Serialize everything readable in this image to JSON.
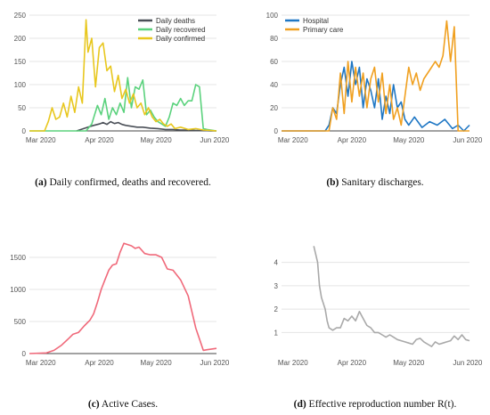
{
  "charts": [
    {
      "id": "a",
      "type": "line",
      "x_ticks": [
        "Mar 2020",
        "Apr 2020",
        "May 2020",
        "Jun 2020"
      ],
      "xlim": [
        "2020-02-24",
        "2020-06-02"
      ],
      "ylim": [
        0,
        250
      ],
      "y_ticks": [
        0,
        50,
        100,
        150,
        200,
        250
      ],
      "legend": "top-right",
      "caption_label": "(a)",
      "caption_text": "Daily confirmed, deaths and recovered.",
      "series": [
        {
          "name": "Daily deaths",
          "color": "#4a4f57",
          "x": [
            "2020-03-20",
            "2020-03-23",
            "2020-03-26",
            "2020-03-29",
            "2020-04-01",
            "2020-04-03",
            "2020-04-05",
            "2020-04-07",
            "2020-04-09",
            "2020-04-11",
            "2020-04-13",
            "2020-04-15",
            "2020-04-18",
            "2020-04-21",
            "2020-04-24",
            "2020-04-28",
            "2020-05-02",
            "2020-05-06",
            "2020-05-10",
            "2020-05-14",
            "2020-05-18",
            "2020-05-22",
            "2020-05-26",
            "2020-05-30",
            "2020-06-02"
          ],
          "y": [
            0,
            4,
            8,
            12,
            15,
            18,
            14,
            20,
            16,
            18,
            14,
            12,
            10,
            8,
            8,
            6,
            5,
            3,
            3,
            2,
            2,
            1,
            1,
            0,
            0
          ]
        },
        {
          "name": "Daily recovered",
          "color": "#5bd27d",
          "x": [
            "2020-02-24",
            "2020-03-25",
            "2020-03-28",
            "2020-03-31",
            "2020-04-02",
            "2020-04-04",
            "2020-04-06",
            "2020-04-08",
            "2020-04-10",
            "2020-04-12",
            "2020-04-14",
            "2020-04-16",
            "2020-04-18",
            "2020-04-20",
            "2020-04-22",
            "2020-04-24",
            "2020-04-26",
            "2020-04-28",
            "2020-04-30",
            "2020-05-02",
            "2020-05-04",
            "2020-05-06",
            "2020-05-08",
            "2020-05-10",
            "2020-05-12",
            "2020-05-14",
            "2020-05-16",
            "2020-05-18",
            "2020-05-20",
            "2020-05-22",
            "2020-05-24",
            "2020-05-26",
            "2020-05-28",
            "2020-05-30",
            "2020-06-02"
          ],
          "y": [
            0,
            0,
            15,
            55,
            35,
            70,
            25,
            50,
            35,
            60,
            40,
            115,
            50,
            95,
            90,
            110,
            35,
            45,
            30,
            20,
            15,
            10,
            30,
            60,
            55,
            70,
            55,
            65,
            65,
            100,
            95,
            5,
            3,
            2,
            0
          ]
        },
        {
          "name": "Daily confirmed",
          "color": "#e8c71e",
          "x": [
            "2020-02-24",
            "2020-03-03",
            "2020-03-05",
            "2020-03-07",
            "2020-03-09",
            "2020-03-11",
            "2020-03-13",
            "2020-03-15",
            "2020-03-17",
            "2020-03-19",
            "2020-03-21",
            "2020-03-23",
            "2020-03-25",
            "2020-03-26",
            "2020-03-28",
            "2020-03-30",
            "2020-04-01",
            "2020-04-03",
            "2020-04-05",
            "2020-04-07",
            "2020-04-09",
            "2020-04-11",
            "2020-04-13",
            "2020-04-15",
            "2020-04-17",
            "2020-04-19",
            "2020-04-21",
            "2020-04-23",
            "2020-04-25",
            "2020-04-27",
            "2020-04-29",
            "2020-05-01",
            "2020-05-03",
            "2020-05-05",
            "2020-05-07",
            "2020-05-09",
            "2020-05-11",
            "2020-05-14",
            "2020-05-18",
            "2020-05-22",
            "2020-05-26",
            "2020-05-30",
            "2020-06-02"
          ],
          "y": [
            0,
            0,
            20,
            50,
            25,
            30,
            60,
            30,
            75,
            40,
            95,
            60,
            240,
            170,
            200,
            95,
            180,
            190,
            130,
            140,
            85,
            120,
            70,
            90,
            60,
            80,
            50,
            60,
            35,
            50,
            30,
            20,
            25,
            15,
            10,
            15,
            5,
            8,
            3,
            5,
            2,
            1,
            0
          ]
        }
      ]
    },
    {
      "id": "b",
      "type": "line",
      "x_ticks": [
        "Mar 2020",
        "Apr 2020",
        "May 2020",
        "Jun 2020"
      ],
      "xlim": [
        "2020-02-24",
        "2020-06-02"
      ],
      "ylim": [
        0,
        100
      ],
      "y_ticks": [
        0,
        20,
        40,
        60,
        80,
        100
      ],
      "legend": "top-left",
      "caption_label": "(b)",
      "caption_text": "Sanitary discharges.",
      "series": [
        {
          "name": "Hospital",
          "color": "#1f77c4",
          "x": [
            "2020-02-24",
            "2020-03-18",
            "2020-03-20",
            "2020-03-22",
            "2020-03-24",
            "2020-03-26",
            "2020-03-28",
            "2020-03-30",
            "2020-04-01",
            "2020-04-03",
            "2020-04-05",
            "2020-04-07",
            "2020-04-09",
            "2020-04-11",
            "2020-04-13",
            "2020-04-15",
            "2020-04-17",
            "2020-04-19",
            "2020-04-21",
            "2020-04-23",
            "2020-04-25",
            "2020-04-27",
            "2020-04-29",
            "2020-05-01",
            "2020-05-04",
            "2020-05-08",
            "2020-05-12",
            "2020-05-16",
            "2020-05-20",
            "2020-05-24",
            "2020-05-27",
            "2020-05-30",
            "2020-06-02"
          ],
          "y": [
            0,
            0,
            5,
            20,
            15,
            40,
            55,
            30,
            60,
            40,
            55,
            20,
            45,
            35,
            20,
            45,
            10,
            30,
            15,
            40,
            20,
            25,
            10,
            5,
            12,
            3,
            8,
            5,
            10,
            2,
            5,
            0,
            5
          ]
        },
        {
          "name": "Primary care",
          "color": "#f0a020",
          "x": [
            "2020-02-24",
            "2020-03-20",
            "2020-03-22",
            "2020-03-24",
            "2020-03-26",
            "2020-03-28",
            "2020-03-30",
            "2020-04-01",
            "2020-04-03",
            "2020-04-05",
            "2020-04-07",
            "2020-04-09",
            "2020-04-11",
            "2020-04-13",
            "2020-04-15",
            "2020-04-17",
            "2020-04-19",
            "2020-04-21",
            "2020-04-23",
            "2020-04-25",
            "2020-04-27",
            "2020-04-29",
            "2020-05-01",
            "2020-05-03",
            "2020-05-05",
            "2020-05-07",
            "2020-05-09",
            "2020-05-11",
            "2020-05-13",
            "2020-05-15",
            "2020-05-17",
            "2020-05-19",
            "2020-05-21",
            "2020-05-23",
            "2020-05-25",
            "2020-05-27",
            "2020-06-02"
          ],
          "y": [
            0,
            0,
            20,
            10,
            50,
            15,
            60,
            25,
            55,
            30,
            50,
            20,
            45,
            55,
            25,
            50,
            15,
            40,
            10,
            20,
            5,
            30,
            55,
            40,
            50,
            35,
            45,
            50,
            55,
            60,
            55,
            65,
            95,
            60,
            90,
            0,
            0
          ]
        }
      ]
    },
    {
      "id": "c",
      "type": "line",
      "x_ticks": [
        "Mar 2020",
        "Apr 2020",
        "May 2020",
        "Jun 2020"
      ],
      "xlim": [
        "2020-02-24",
        "2020-06-02"
      ],
      "ylim": [
        0,
        1750
      ],
      "y_ticks": [
        0,
        500,
        1000,
        1500
      ],
      "legend": "none",
      "caption_label": "(c)",
      "caption_text": "Active Cases.",
      "series": [
        {
          "color": "#f0697a",
          "x": [
            "2020-02-24",
            "2020-03-04",
            "2020-03-08",
            "2020-03-12",
            "2020-03-16",
            "2020-03-18",
            "2020-03-21",
            "2020-03-24",
            "2020-03-27",
            "2020-03-29",
            "2020-03-31",
            "2020-04-02",
            "2020-04-04",
            "2020-04-06",
            "2020-04-08",
            "2020-04-10",
            "2020-04-12",
            "2020-04-14",
            "2020-04-16",
            "2020-04-18",
            "2020-04-20",
            "2020-04-22",
            "2020-04-25",
            "2020-04-28",
            "2020-05-01",
            "2020-05-04",
            "2020-05-07",
            "2020-05-10",
            "2020-05-14",
            "2020-05-18",
            "2020-05-22",
            "2020-05-26",
            "2020-05-28",
            "2020-06-02"
          ],
          "y": [
            0,
            10,
            50,
            130,
            240,
            300,
            330,
            430,
            520,
            620,
            800,
            1000,
            1150,
            1300,
            1380,
            1400,
            1580,
            1720,
            1700,
            1680,
            1640,
            1660,
            1560,
            1540,
            1540,
            1500,
            1320,
            1300,
            1150,
            900,
            400,
            50,
            60,
            80
          ]
        }
      ]
    },
    {
      "id": "d",
      "type": "line",
      "x_ticks": [
        "Mar 2020",
        "Apr 2020",
        "May 2020",
        "Jun 2020"
      ],
      "xlim": [
        "2020-02-24",
        "2020-06-02"
      ],
      "ylim": [
        0.1,
        4.9
      ],
      "y_ticks": [
        1,
        2,
        3,
        4
      ],
      "legend": "none",
      "caption_label": "(d)",
      "caption_text": "Effective reproduction number R(t).",
      "series": [
        {
          "color": "#a9a9a9",
          "x": [
            "2020-03-12",
            "2020-03-14",
            "2020-03-15",
            "2020-03-16",
            "2020-03-18",
            "2020-03-19",
            "2020-03-20",
            "2020-03-22",
            "2020-03-24",
            "2020-03-26",
            "2020-03-28",
            "2020-03-30",
            "2020-04-01",
            "2020-04-03",
            "2020-04-05",
            "2020-04-07",
            "2020-04-09",
            "2020-04-11",
            "2020-04-13",
            "2020-04-15",
            "2020-04-17",
            "2020-04-19",
            "2020-04-21",
            "2020-04-23",
            "2020-04-25",
            "2020-04-27",
            "2020-04-29",
            "2020-05-01",
            "2020-05-03",
            "2020-05-05",
            "2020-05-07",
            "2020-05-09",
            "2020-05-11",
            "2020-05-13",
            "2020-05-15",
            "2020-05-17",
            "2020-05-19",
            "2020-05-21",
            "2020-05-23",
            "2020-05-25",
            "2020-05-27",
            "2020-05-29",
            "2020-05-31",
            "2020-06-02"
          ],
          "y": [
            4.7,
            4.0,
            3.0,
            2.5,
            2.0,
            1.5,
            1.2,
            1.1,
            1.2,
            1.2,
            1.6,
            1.5,
            1.7,
            1.5,
            1.9,
            1.6,
            1.3,
            1.2,
            1.0,
            1.0,
            0.9,
            0.8,
            0.9,
            0.8,
            0.7,
            0.65,
            0.6,
            0.55,
            0.5,
            0.7,
            0.75,
            0.6,
            0.5,
            0.4,
            0.6,
            0.5,
            0.55,
            0.6,
            0.65,
            0.85,
            0.7,
            0.9,
            0.7,
            0.65
          ]
        }
      ]
    }
  ]
}
